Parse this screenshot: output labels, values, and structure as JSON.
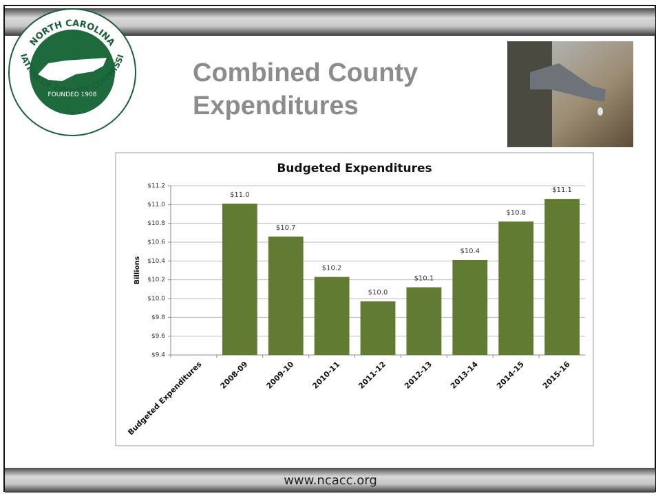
{
  "slide": {
    "title_lines": [
      "Combined County",
      "Expenditures"
    ],
    "footer": "www.ncacc.org",
    "logo": {
      "top_text": "NORTH CAROLINA",
      "ring_text": "ASSOCIATION OF COUNTY COMMISSIONERS",
      "founded": "FOUNDED 1908"
    }
  },
  "chart_data": {
    "type": "bar",
    "title": "Budgeted Expenditures",
    "y_label": "Billions",
    "categories": [
      "Budgeted Expenditures",
      "2008-09",
      "2009-10",
      "2010-11",
      "2011-12",
      "2012-13",
      "2013-14",
      "2014-15",
      "2015-16"
    ],
    "values": [
      null,
      11.01,
      10.66,
      10.23,
      9.97,
      10.12,
      10.41,
      10.82,
      11.06
    ],
    "value_labels": [
      null,
      "$11.0",
      "$10.7",
      "$10.2",
      "$10.0",
      "$10.1",
      "$10.4",
      "$10.8",
      "$11.1"
    ],
    "color": "#627b32",
    "ylim": [
      9.4,
      11.2
    ],
    "yticks": [
      {
        "value": 9.4,
        "label": "$9.4"
      },
      {
        "value": 9.6,
        "label": "$9.6"
      },
      {
        "value": 9.8,
        "label": "$9.8"
      },
      {
        "value": 10.0,
        "label": "$10.0"
      },
      {
        "value": 10.2,
        "label": "$10.2"
      },
      {
        "value": 10.4,
        "label": "$10.4"
      },
      {
        "value": 10.6,
        "label": "$10.6"
      },
      {
        "value": 10.8,
        "label": "$10.8"
      },
      {
        "value": 11.0,
        "label": "$11.0"
      },
      {
        "value": 11.2,
        "label": "$11.2"
      }
    ],
    "grid": true
  }
}
